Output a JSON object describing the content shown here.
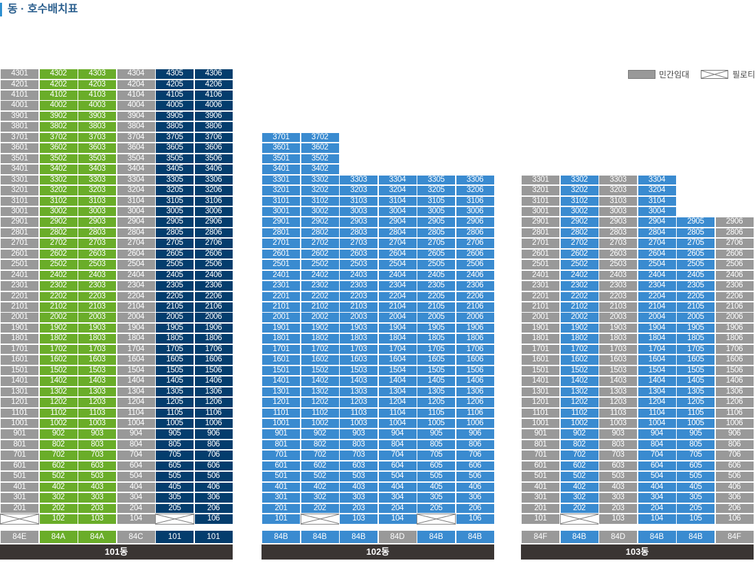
{
  "title": "동 · 호수배치표",
  "legend": [
    {
      "label": "민간임대",
      "icon": "gray-swatch"
    },
    {
      "label": "필로티",
      "icon": "piloti-x-swatch"
    }
  ],
  "colors": {
    "gray": "#999999",
    "green": "#6aad29",
    "navy": "#043d6d",
    "blue": "#3a8bd0",
    "name_bar": "#3a3533"
  },
  "buildings": [
    {
      "name": "101동",
      "top_floor": 43,
      "units": [
        {
          "cols": [
            1,
            2
          ],
          "type": "84E",
          "color": "gray",
          "unit_color": "gray",
          "piloti": true
        },
        {
          "type": "84A",
          "color": "green",
          "unit_color": "green"
        },
        {
          "type": "84A",
          "color": "green",
          "unit_color": "green"
        },
        {
          "type": "84C",
          "color": "gray",
          "unit_color": "gray"
        },
        {
          "type": "101",
          "color": "navy",
          "unit_color": "navy",
          "piloti": true
        },
        {
          "type": "101",
          "color": "navy",
          "unit_color": "navy"
        }
      ],
      "col_top": [
        43,
        43,
        43,
        43,
        43,
        43
      ],
      "ground": [
        "P",
        "102",
        "103",
        "104",
        "P",
        "106"
      ],
      "overrides": {}
    },
    {
      "name": "102동",
      "units": [
        {
          "type": "84B",
          "color": "blue",
          "unit_color": "blue"
        },
        {
          "type": "84B",
          "color": "blue",
          "unit_color": "blue"
        },
        {
          "type": "84B",
          "color": "blue",
          "unit_color": "blue"
        },
        {
          "type": "84D",
          "color": "gray",
          "unit_color": "blue"
        },
        {
          "type": "84B",
          "color": "blue",
          "unit_color": "blue"
        },
        {
          "type": "84B",
          "color": "blue",
          "unit_color": "blue"
        }
      ],
      "col_top": [
        37,
        37,
        33,
        33,
        33,
        33
      ],
      "ground": [
        "101",
        "P",
        "103",
        "104",
        "P",
        "106"
      ],
      "overrides": {}
    },
    {
      "name": "103동",
      "units": [
        {
          "type": "84F",
          "color": "gray",
          "unit_color": "gray"
        },
        {
          "type": "84B",
          "color": "blue",
          "unit_color": "blue"
        },
        {
          "type": "84D",
          "color": "gray",
          "unit_color": "gray"
        },
        {
          "type": "84B",
          "color": "blue",
          "unit_color": "blue"
        },
        {
          "type": "84B",
          "color": "blue",
          "unit_color": "blue"
        },
        {
          "type": "84F",
          "color": "gray",
          "unit_color": "gray"
        }
      ],
      "col_top": [
        33,
        33,
        33,
        33,
        29,
        29
      ],
      "ground": [
        "101",
        "P",
        "103",
        "104",
        "105",
        "106"
      ],
      "overrides": {}
    }
  ]
}
